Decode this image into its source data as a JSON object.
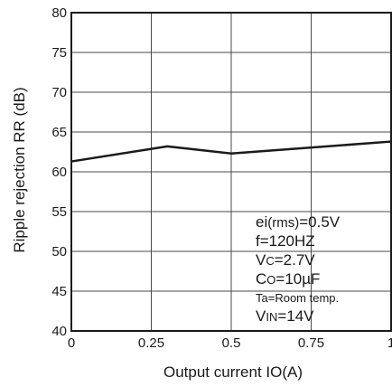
{
  "chart_data": {
    "type": "line",
    "xlabel": "Output current IO(A)",
    "ylabel": "Ripple rejection RR (dB)",
    "xlim": [
      0,
      1
    ],
    "ylim": [
      40,
      80
    ],
    "xticks": [
      "0",
      "0.25",
      "0.5",
      "0.75",
      "1"
    ],
    "yticks": [
      "40",
      "45",
      "50",
      "55",
      "60",
      "65",
      "70",
      "75",
      "80"
    ],
    "grid": true,
    "series": [
      {
        "x": [
          0,
          0.3,
          0.5,
          1.0
        ],
        "y": [
          61.3,
          63.2,
          62.3,
          63.8
        ]
      }
    ],
    "conditions": [
      {
        "main": "ei",
        "sub": "(rms)",
        "rest": "=0.5V"
      },
      {
        "main": "f=120HZ",
        "sub": "",
        "rest": ""
      },
      {
        "main": "V",
        "sub": "C",
        "rest": "=2.7V"
      },
      {
        "main": "C",
        "sub": "O",
        "rest": "=10µF"
      },
      {
        "main": "T",
        "sub": "a",
        "rest": "=Room temp."
      },
      {
        "main": "V",
        "sub": "IN",
        "rest": "=14V"
      }
    ]
  }
}
